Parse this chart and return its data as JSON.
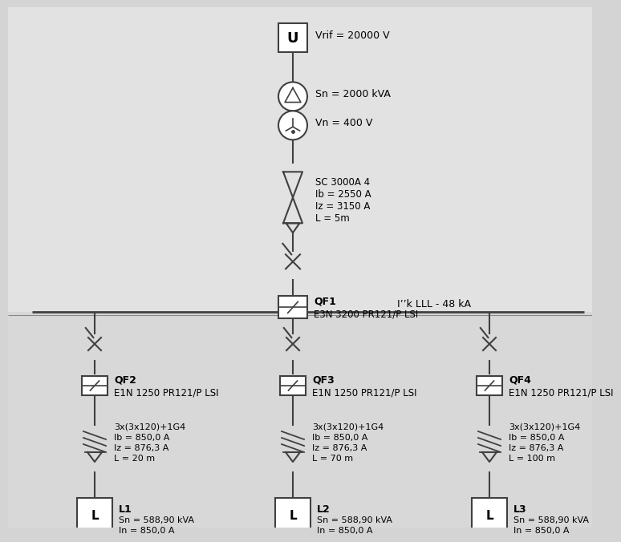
{
  "bg_color": "#d8d8d8",
  "panel_color": "#e8e8e8",
  "line_color": "#404040",
  "text_color": "#000000",
  "voltage_source": {
    "label": "U",
    "annotation": "Vrif = 20000 V"
  },
  "transformer_upper": {
    "annotation": "Sn = 2000 kVA"
  },
  "transformer_lower": {
    "annotation": "Vn = 400 V"
  },
  "busbar_cable": {
    "label1": "SC 3000A 4",
    "label2": "Ib = 2550 A",
    "label3": "Iz = 3150 A",
    "label4": "L = 5m"
  },
  "main_breaker": {
    "name": "QF1",
    "spec": "E3N 3200 PR121/P LSI"
  },
  "busbar_annotation": "I’’k LLL - 48 kA",
  "branches": [
    {
      "name": "QF2",
      "spec": "E1N 1250 PR121/P LSI",
      "cable_label1": "3x(3x120)+1G4",
      "cable_label2": "Ib = 850,0 A",
      "cable_label3": "Iz = 876,3 A",
      "cable_label4": "L = 20 m",
      "load_name": "L1",
      "load_spec1": "Sn = 588,90 kVA",
      "load_spec2": "In = 850,0 A"
    },
    {
      "name": "QF3",
      "spec": "E1N 1250 PR121/P LSI",
      "cable_label1": "3x(3x120)+1G4",
      "cable_label2": "Ib = 850,0 A",
      "cable_label3": "Iz = 876,3 A",
      "cable_label4": "L = 70 m",
      "load_name": "L2",
      "load_spec1": "Sn = 588,90 kVA",
      "load_spec2": "In = 850,0 A"
    },
    {
      "name": "QF4",
      "spec": "E1N 1250 PR121/P LSI",
      "cable_label1": "3x(3x120)+1G4",
      "cable_label2": "Ib = 850,0 A",
      "cable_label3": "Iz = 876,3 A",
      "cable_label4": "L = 100 m",
      "load_name": "L3",
      "load_spec1": "Sn = 588,90 kVA",
      "load_spec2": "In = 850,0 A"
    }
  ]
}
